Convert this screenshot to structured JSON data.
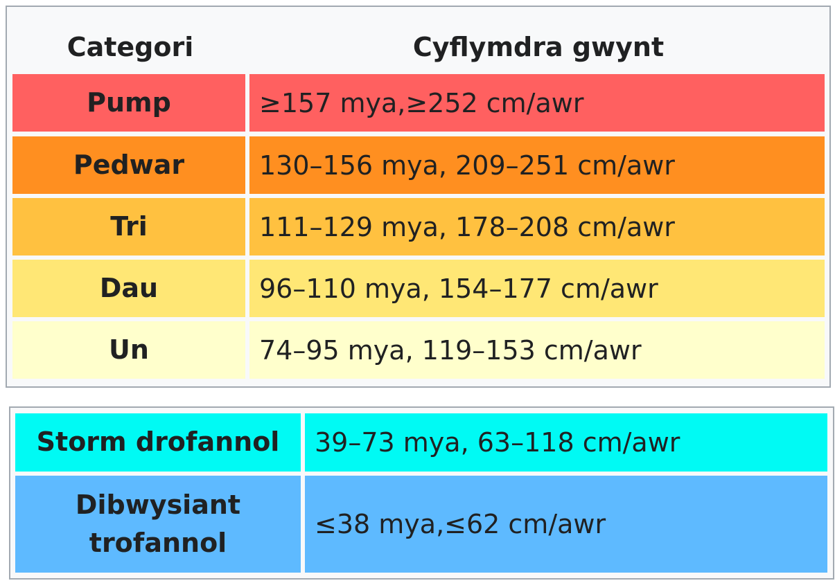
{
  "saffir_table": {
    "headers": {
      "category": "Categori",
      "wind_speed": "Cyflymdra gwynt"
    },
    "rows": [
      {
        "category": "Pump",
        "speed": " ≥157 mya,≥252 cm/awr",
        "color": "#ff6060"
      },
      {
        "category": "Pedwar",
        "speed": "130–156 mya, 209–251 cm/awr",
        "color": "#ff8f20"
      },
      {
        "category": "Tri",
        "speed": "111–129 mya, 178–208 cm/awr",
        "color": "#ffc140"
      },
      {
        "category": "Dau",
        "speed": "96–110 mya, 154–177 cm/awr",
        "color": "#ffe775"
      },
      {
        "category": "Un",
        "speed": "74–95 mya, 119–153 cm/awr",
        "color": "#ffffcc"
      }
    ]
  },
  "tropical_table": {
    "rows": [
      {
        "category": "Storm drofannol",
        "speed": "39–73 mya, 63–118 cm/awr",
        "color": "#00faf4"
      },
      {
        "category": "Dibwysiant trofannol",
        "speed": "≤38 mya,≤62 cm/awr",
        "color": "#5ebaff"
      }
    ]
  }
}
